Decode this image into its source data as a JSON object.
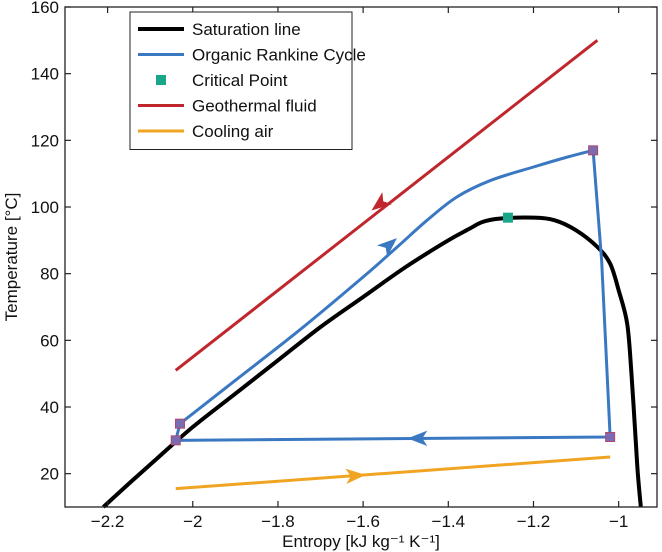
{
  "chart_data": {
    "type": "line",
    "xlabel": "Entropy [kJ kg⁻¹ K⁻¹]",
    "ylabel": "Temperature [°C]",
    "xlim": [
      -2.3,
      -0.91
    ],
    "ylim": [
      10,
      160
    ],
    "xticks": [
      -2.2,
      -2,
      -1.8,
      -1.6,
      -1.4,
      -1.2,
      -1
    ],
    "xtick_labels": [
      "−2.2",
      "−2",
      "−1.8",
      "−1.6",
      "−1.4",
      "−1.2",
      "−1"
    ],
    "yticks": [
      20,
      40,
      60,
      80,
      100,
      120,
      140,
      160
    ],
    "ytick_labels": [
      "20",
      "40",
      "60",
      "80",
      "100",
      "120",
      "140",
      "160"
    ],
    "grid": false,
    "legend_position": "top-left",
    "series": [
      {
        "name": "Saturation line",
        "color": "#000000",
        "kind": "line",
        "points": [
          [
            -2.21,
            10
          ],
          [
            -2.15,
            17
          ],
          [
            -2.08,
            25
          ],
          [
            -2.0,
            34
          ],
          [
            -1.9,
            44
          ],
          [
            -1.8,
            54
          ],
          [
            -1.7,
            64
          ],
          [
            -1.6,
            73
          ],
          [
            -1.5,
            82
          ],
          [
            -1.4,
            90
          ],
          [
            -1.35,
            93.5
          ],
          [
            -1.32,
            95.5
          ],
          [
            -1.28,
            96.5
          ],
          [
            -1.2,
            96.8
          ],
          [
            -1.15,
            96
          ],
          [
            -1.1,
            93
          ],
          [
            -1.05,
            88
          ],
          [
            -1.02,
            83
          ],
          [
            -1.0,
            75
          ],
          [
            -0.98,
            65
          ],
          [
            -0.97,
            50
          ],
          [
            -0.96,
            30
          ],
          [
            -0.955,
            20
          ],
          [
            -0.948,
            10
          ]
        ]
      },
      {
        "name": "Organic Rankine Cycle",
        "color": "#3a78c2",
        "kind": "line",
        "points": [
          [
            -2.04,
            30
          ],
          [
            -2.03,
            35
          ],
          [
            -1.9,
            48
          ],
          [
            -1.75,
            63
          ],
          [
            -1.6,
            79
          ],
          [
            -1.52,
            88
          ],
          [
            -1.45,
            96
          ],
          [
            -1.38,
            103
          ],
          [
            -1.3,
            108
          ],
          [
            -1.2,
            112
          ],
          [
            -1.12,
            115
          ],
          [
            -1.06,
            117
          ],
          [
            -1.04,
            84
          ],
          [
            -1.02,
            31
          ],
          [
            -2.04,
            30
          ]
        ],
        "markers": [
          [
            -2.04,
            30
          ],
          [
            -2.03,
            35
          ],
          [
            -1.06,
            117
          ],
          [
            -1.02,
            31
          ]
        ],
        "arrows": [
          {
            "x": -1.54,
            "y": 88.5,
            "dir": "forward"
          },
          {
            "x": -1.47,
            "y": 30.6,
            "dir": "left"
          }
        ]
      },
      {
        "name": "Critical Point",
        "color": "#1aa68a",
        "kind": "marker",
        "points": [
          [
            -1.26,
            96.8
          ]
        ]
      },
      {
        "name": "Geothermal fluid",
        "color": "#c0272d",
        "kind": "line",
        "points": [
          [
            -1.05,
            150
          ],
          [
            -2.04,
            51
          ]
        ],
        "arrows": [
          {
            "x": -1.56,
            "y": 101,
            "dir": "forward"
          }
        ]
      },
      {
        "name": "Cooling air",
        "color": "#f0a421",
        "kind": "line",
        "points": [
          [
            -2.04,
            15.5
          ],
          [
            -1.02,
            25
          ]
        ],
        "arrows": [
          {
            "x": -1.62,
            "y": 19.4,
            "dir": "forward"
          }
        ]
      }
    ]
  }
}
